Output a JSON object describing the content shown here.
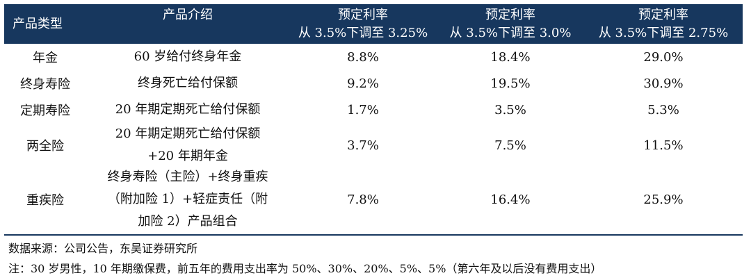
{
  "header": {
    "col_type": "产品类型",
    "col_intro": "产品介绍",
    "col_a": {
      "line1": "预定利率",
      "line2": "从 3.5%下调至 3.25%"
    },
    "col_b": {
      "line1": "预定利率",
      "line2": "从 3.5%下调至 3.0%"
    },
    "col_c": {
      "line1": "预定利率",
      "line2": "从 3.5%下调至 2.75%"
    }
  },
  "rows": [
    {
      "type": "年金",
      "intro": [
        "60 岁给付终身年金"
      ],
      "a": "8.8%",
      "b": "18.4%",
      "c": "29.0%"
    },
    {
      "type": "终身寿险",
      "intro": [
        "终身死亡给付保额"
      ],
      "a": "9.2%",
      "b": "19.5%",
      "c": "30.9%"
    },
    {
      "type": "定期寿险",
      "intro": [
        "20 年期定期死亡给付保额"
      ],
      "a": "1.7%",
      "b": "3.5%",
      "c": "5.3%"
    },
    {
      "type": "两全险",
      "intro": [
        "20 年期定期死亡给付保额",
        "+20 年期年金"
      ],
      "a": "3.7%",
      "b": "7.5%",
      "c": "11.5%"
    },
    {
      "type": "重疾险",
      "intro": [
        "终身寿险（主险）+终身重疾",
        "（附加险 1）+轻症责任（附",
        "加险 2）产品组合"
      ],
      "a": "7.8%",
      "b": "16.4%",
      "c": "25.9%"
    }
  ],
  "notes": {
    "source": "数据来源：公司公告，东吴证券研究所",
    "note": "注：30 岁男性，10 年期缴保费，前五年的费用支出率为 50%、30%、20%、5%、5%（第六年及以后没有费用支出）"
  }
}
